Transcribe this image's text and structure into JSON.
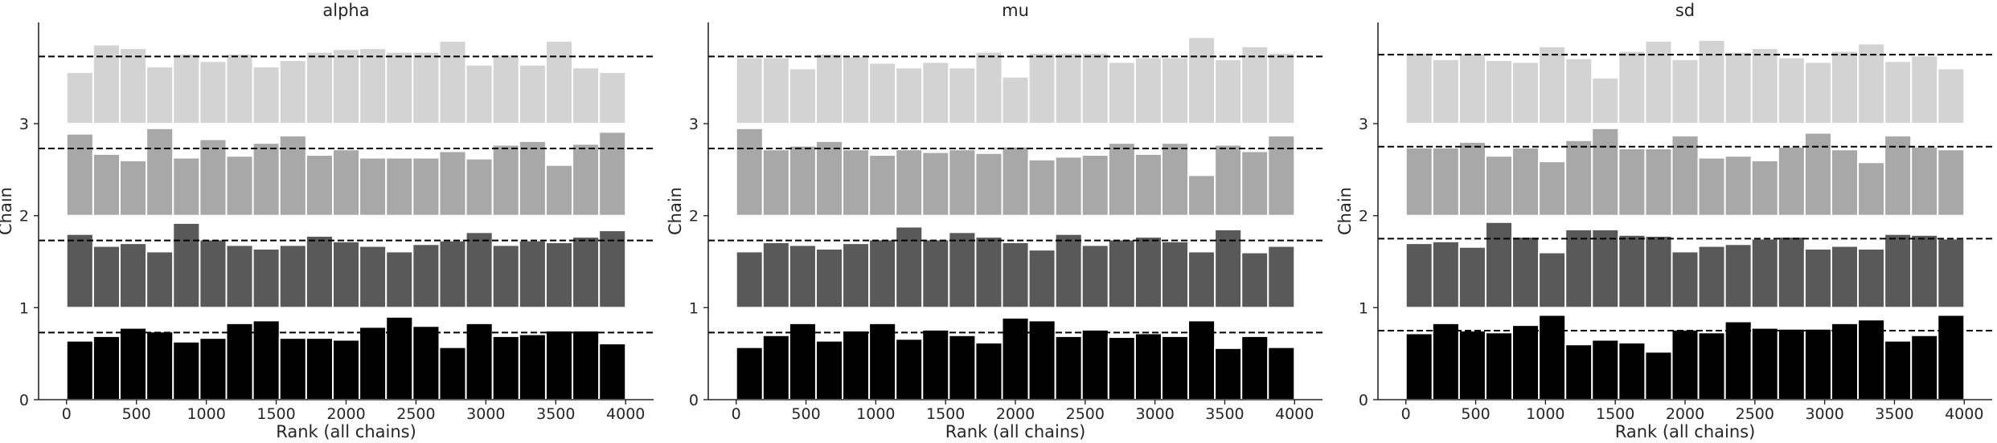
{
  "chart_data": [
    {
      "type": "bar",
      "title": "alpha",
      "xlabel": "Rank (all chains)",
      "ylabel": "Chain",
      "xlim": [
        -200,
        4200
      ],
      "ylim": [
        0,
        4.1
      ],
      "xticks": [
        "0",
        "500",
        "1000",
        "1500",
        "2000",
        "2500",
        "3000",
        "3500",
        "4000"
      ],
      "yticks": [
        "0",
        "1",
        "2",
        "3"
      ],
      "bin_edges": [
        0,
        190.5,
        381,
        571.5,
        762,
        952.5,
        1143,
        1333.5,
        1524,
        1714.5,
        1905,
        2095.5,
        2286,
        2476.5,
        2667,
        2857.5,
        3048,
        3238.5,
        3429,
        3619.5,
        3810,
        4000
      ],
      "reference_level": 0.73,
      "series": [
        {
          "chain": "0",
          "color": "#000000",
          "values": [
            0.64,
            0.69,
            0.78,
            0.74,
            0.63,
            0.67,
            0.83,
            0.86,
            0.67,
            0.67,
            0.65,
            0.79,
            0.9,
            0.8,
            0.57,
            0.83,
            0.69,
            0.71,
            0.75,
            0.75,
            0.61
          ]
        },
        {
          "chain": "1",
          "color": "#595959",
          "values": [
            0.8,
            0.67,
            0.7,
            0.61,
            0.92,
            0.74,
            0.68,
            0.64,
            0.68,
            0.78,
            0.72,
            0.67,
            0.61,
            0.69,
            0.73,
            0.82,
            0.68,
            0.73,
            0.71,
            0.77,
            0.84
          ]
        },
        {
          "chain": "2",
          "color": "#a8a8a8",
          "values": [
            0.89,
            0.67,
            0.6,
            0.95,
            0.63,
            0.83,
            0.65,
            0.79,
            0.87,
            0.66,
            0.72,
            0.63,
            0.63,
            0.63,
            0.7,
            0.62,
            0.77,
            0.81,
            0.55,
            0.78,
            0.91
          ]
        },
        {
          "chain": "3",
          "color": "#d3d3d3",
          "values": [
            0.56,
            0.86,
            0.82,
            0.62,
            0.76,
            0.68,
            0.76,
            0.62,
            0.69,
            0.78,
            0.81,
            0.82,
            0.78,
            0.78,
            0.9,
            0.64,
            0.75,
            0.64,
            0.9,
            0.61,
            0.56
          ]
        }
      ]
    },
    {
      "type": "bar",
      "title": "mu",
      "xlabel": "Rank (all chains)",
      "ylabel": "Chain",
      "xlim": [
        -200,
        4200
      ],
      "ylim": [
        0,
        4.1
      ],
      "xticks": [
        "0",
        "500",
        "1000",
        "1500",
        "2000",
        "2500",
        "3000",
        "3500",
        "4000"
      ],
      "yticks": [
        "0",
        "1",
        "2",
        "3"
      ],
      "bin_edges": [
        0,
        190.5,
        381,
        571.5,
        762,
        952.5,
        1143,
        1333.5,
        1524,
        1714.5,
        1905,
        2095.5,
        2286,
        2476.5,
        2667,
        2857.5,
        3048,
        3238.5,
        3429,
        3619.5,
        3810,
        4000
      ],
      "reference_level": 0.73,
      "series": [
        {
          "chain": "0",
          "color": "#000000",
          "values": [
            0.57,
            0.7,
            0.83,
            0.64,
            0.75,
            0.83,
            0.66,
            0.76,
            0.7,
            0.62,
            0.89,
            0.86,
            0.69,
            0.76,
            0.68,
            0.72,
            0.69,
            0.86,
            0.56,
            0.69,
            0.57
          ]
        },
        {
          "chain": "1",
          "color": "#595959",
          "values": [
            0.61,
            0.71,
            0.68,
            0.64,
            0.7,
            0.74,
            0.88,
            0.74,
            0.82,
            0.77,
            0.71,
            0.63,
            0.8,
            0.68,
            0.74,
            0.77,
            0.72,
            0.61,
            0.85,
            0.6,
            0.67
          ]
        },
        {
          "chain": "2",
          "color": "#a8a8a8",
          "values": [
            0.95,
            0.72,
            0.76,
            0.81,
            0.72,
            0.66,
            0.72,
            0.69,
            0.72,
            0.68,
            0.75,
            0.61,
            0.64,
            0.66,
            0.79,
            0.67,
            0.79,
            0.44,
            0.77,
            0.7,
            0.87
          ]
        },
        {
          "chain": "3",
          "color": "#d3d3d3",
          "values": [
            0.72,
            0.72,
            0.6,
            0.76,
            0.73,
            0.66,
            0.61,
            0.67,
            0.61,
            0.78,
            0.51,
            0.77,
            0.77,
            0.77,
            0.67,
            0.72,
            0.72,
            0.94,
            0.7,
            0.84,
            0.77
          ]
        }
      ]
    },
    {
      "type": "bar",
      "title": "sd",
      "xlabel": "Rank (all chains)",
      "ylabel": "Chain",
      "xlim": [
        -200,
        4200
      ],
      "ylim": [
        0,
        4.1
      ],
      "xticks": [
        "0",
        "500",
        "1000",
        "1500",
        "2000",
        "2500",
        "3000",
        "3500",
        "4000"
      ],
      "yticks": [
        "0",
        "1",
        "2",
        "3"
      ],
      "bin_edges": [
        0,
        190.5,
        381,
        571.5,
        762,
        952.5,
        1143,
        1333.5,
        1524,
        1714.5,
        1905,
        2095.5,
        2286,
        2476.5,
        2667,
        2857.5,
        3048,
        3238.5,
        3429,
        3619.5,
        3810,
        4000
      ],
      "reference_level": 0.75,
      "series": [
        {
          "chain": "0",
          "color": "#000000",
          "values": [
            0.72,
            0.83,
            0.75,
            0.73,
            0.81,
            0.92,
            0.6,
            0.65,
            0.62,
            0.52,
            0.76,
            0.73,
            0.85,
            0.78,
            0.77,
            0.77,
            0.83,
            0.87,
            0.64,
            0.7,
            0.92
          ]
        },
        {
          "chain": "1",
          "color": "#595959",
          "values": [
            0.7,
            0.72,
            0.66,
            0.93,
            0.77,
            0.6,
            0.85,
            0.85,
            0.79,
            0.78,
            0.61,
            0.67,
            0.69,
            0.75,
            0.77,
            0.64,
            0.67,
            0.64,
            0.8,
            0.79,
            0.75
          ]
        },
        {
          "chain": "2",
          "color": "#a8a8a8",
          "values": [
            0.74,
            0.74,
            0.8,
            0.65,
            0.74,
            0.59,
            0.82,
            0.95,
            0.73,
            0.73,
            0.87,
            0.63,
            0.65,
            0.6,
            0.75,
            0.9,
            0.72,
            0.58,
            0.87,
            0.75,
            0.72
          ]
        },
        {
          "chain": "3",
          "color": "#d3d3d3",
          "values": [
            0.77,
            0.7,
            0.76,
            0.69,
            0.67,
            0.84,
            0.71,
            0.5,
            0.79,
            0.9,
            0.7,
            0.91,
            0.78,
            0.82,
            0.72,
            0.67,
            0.79,
            0.87,
            0.68,
            0.74,
            0.6
          ]
        }
      ]
    }
  ]
}
